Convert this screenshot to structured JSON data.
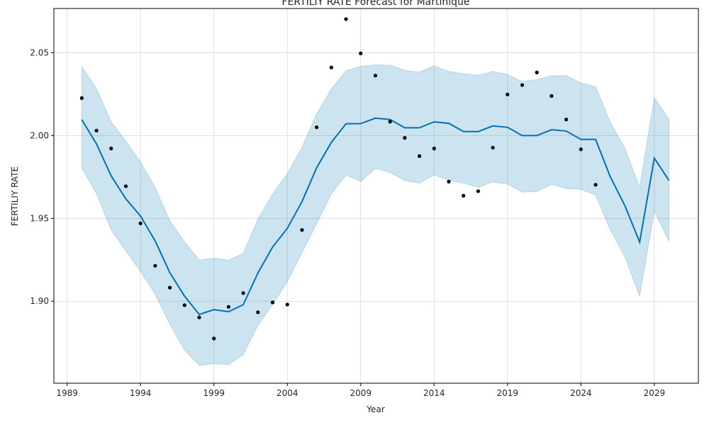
{
  "chart_data": {
    "type": "line",
    "title": "FERTILIY RATE Forecast for Martinique",
    "xlabel": "Year",
    "ylabel": "FERTILIY RATE",
    "xlim": [
      1988.1,
      2032.0
    ],
    "ylim": [
      1.8505,
      2.0767
    ],
    "grid": true,
    "x_ticks": [
      1989,
      1994,
      1999,
      2004,
      2009,
      2014,
      2019,
      2024,
      2029
    ],
    "x_tick_labels": [
      "1989",
      "1994",
      "1999",
      "2004",
      "2009",
      "2014",
      "2019",
      "2024",
      "2029"
    ],
    "y_ticks": [
      1.9,
      1.95,
      2.0,
      2.05
    ],
    "y_tick_labels": [
      "1.90",
      "1.95",
      "2.00",
      "2.05"
    ],
    "colors": {
      "forecast": "#0072B2",
      "band": "#0072B2",
      "points": "#000000",
      "grid": "#d9d9d9"
    },
    "forecast": {
      "name": "yhat",
      "x": [
        1990,
        1991,
        1992,
        1993,
        1994,
        1995,
        1996,
        1997,
        1998,
        1999,
        2000,
        2001,
        2002,
        2003,
        2004,
        2005,
        2006,
        2007,
        2008,
        2009,
        2010,
        2011,
        2012,
        2013,
        2014,
        2015,
        2016,
        2017,
        2018,
        2019,
        2020,
        2021,
        2022,
        2023,
        2024,
        2025,
        2026,
        2027,
        2028,
        2029,
        2030
      ],
      "y": [
        2.0096,
        1.995,
        1.9757,
        1.9618,
        1.9514,
        1.9364,
        1.9172,
        1.9031,
        1.892,
        1.8949,
        1.8937,
        1.8979,
        1.9171,
        1.9327,
        1.944,
        1.9601,
        1.9806,
        1.9959,
        2.0071,
        2.0072,
        2.0105,
        2.0097,
        2.0047,
        2.0047,
        2.0083,
        2.0074,
        2.0024,
        2.0024,
        2.0058,
        2.005,
        2.0,
        2.0,
        2.0035,
        2.0027,
        1.9977,
        1.9977,
        1.9751,
        1.9576,
        1.9357,
        1.9864,
        1.9728
      ],
      "lower": [
        1.9805,
        1.965,
        1.9431,
        1.9303,
        1.918,
        1.9041,
        1.886,
        1.8705,
        1.8613,
        1.8622,
        1.8617,
        1.8677,
        1.8855,
        1.898,
        1.9117,
        1.9293,
        1.9468,
        1.9647,
        1.9762,
        1.9723,
        1.9801,
        1.9777,
        1.9728,
        1.9713,
        1.9762,
        1.973,
        1.9713,
        1.9688,
        1.9719,
        1.9708,
        1.9658,
        1.9662,
        1.9705,
        1.968,
        1.9675,
        1.964,
        1.943,
        1.9267,
        1.903,
        1.9545,
        1.936
      ],
      "upper": [
        2.0416,
        2.0285,
        2.0082,
        1.9967,
        1.984,
        1.9686,
        1.9486,
        1.9359,
        1.9249,
        1.926,
        1.9248,
        1.9289,
        1.9497,
        1.9646,
        1.977,
        1.9929,
        2.0131,
        2.0283,
        2.0392,
        2.0418,
        2.0427,
        2.0425,
        2.0394,
        2.0383,
        2.0421,
        2.0387,
        2.0373,
        2.0364,
        2.0387,
        2.0369,
        2.0327,
        2.0338,
        2.0361,
        2.0362,
        2.0318,
        2.0296,
        2.008,
        1.9922,
        1.9688,
        2.0229,
        2.0098
      ]
    },
    "observed": {
      "name": "actual",
      "x": [
        1990,
        1991,
        1992,
        1993,
        1994,
        1995,
        1996,
        1997,
        1998,
        1999,
        2000,
        2001,
        2002,
        2003,
        2004,
        2005,
        2006,
        2007,
        2008,
        2009,
        2010,
        2011,
        2012,
        2013,
        2014,
        2015,
        2016,
        2017,
        2018,
        2019,
        2020,
        2021,
        2022,
        2023,
        2024,
        2025
      ],
      "y": [
        2.0226,
        2.003,
        1.9922,
        1.9694,
        1.947,
        1.9214,
        1.9082,
        1.8976,
        1.8902,
        1.8775,
        1.8966,
        1.9049,
        1.8933,
        1.8993,
        1.898,
        1.943,
        2.005,
        2.0411,
        2.0703,
        2.0496,
        2.0362,
        2.0084,
        1.9986,
        1.9876,
        1.9922,
        1.9722,
        1.9637,
        1.9664,
        1.9927,
        2.0248,
        2.0305,
        2.0381,
        2.0239,
        2.0097,
        1.9917,
        1.9703
      ]
    }
  }
}
